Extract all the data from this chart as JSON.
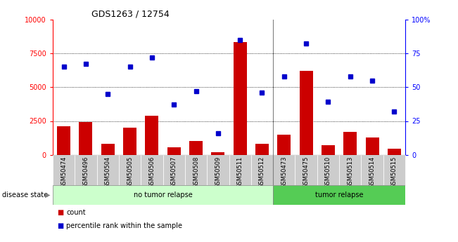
{
  "title": "GDS1263 / 12754",
  "samples": [
    "GSM50474",
    "GSM50496",
    "GSM50504",
    "GSM50505",
    "GSM50506",
    "GSM50507",
    "GSM50508",
    "GSM50509",
    "GSM50511",
    "GSM50512",
    "GSM50473",
    "GSM50475",
    "GSM50510",
    "GSM50513",
    "GSM50514",
    "GSM50515"
  ],
  "counts": [
    2100,
    2400,
    800,
    2000,
    2900,
    550,
    1000,
    200,
    8300,
    800,
    1500,
    6200,
    700,
    1700,
    1300,
    450
  ],
  "percentiles": [
    65,
    67,
    45,
    65,
    72,
    37,
    47,
    16,
    85,
    46,
    58,
    82,
    39,
    58,
    55,
    32
  ],
  "no_tumor_count": 10,
  "tumor_count": 6,
  "ylim_left": [
    0,
    10000
  ],
  "ylim_right": [
    0,
    100
  ],
  "yticks_left": [
    0,
    2500,
    5000,
    7500,
    10000
  ],
  "yticks_right": [
    0,
    25,
    50,
    75,
    100
  ],
  "bar_color": "#cc0000",
  "dot_color": "#0000cc",
  "no_tumor_color": "#ccffcc",
  "tumor_color": "#55cc55",
  "tick_bg_color": "#cccccc",
  "legend_count_label": "count",
  "legend_pct_label": "percentile rank within the sample",
  "disease_state_label": "disease state",
  "no_tumor_label": "no tumor relapse",
  "tumor_label": "tumor relapse"
}
